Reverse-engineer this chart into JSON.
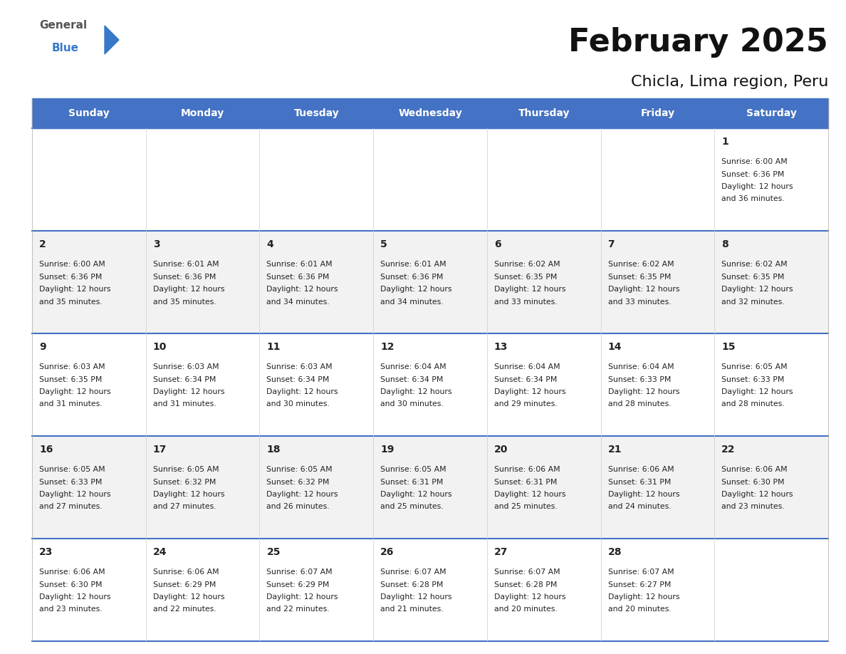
{
  "title": "February 2025",
  "subtitle": "Chicla, Lima region, Peru",
  "header_color": "#4472C4",
  "header_text_color": "#FFFFFF",
  "day_names": [
    "Sunday",
    "Monday",
    "Tuesday",
    "Wednesday",
    "Thursday",
    "Friday",
    "Saturday"
  ],
  "background_color": "#FFFFFF",
  "cell_bg_even": "#F2F2F2",
  "cell_bg_odd": "#FFFFFF",
  "divider_color": "#4472C4",
  "text_color": "#222222",
  "calendar": [
    [
      {
        "day": "",
        "sunrise": "",
        "sunset": "",
        "daylight_h": "",
        "daylight_m": ""
      },
      {
        "day": "",
        "sunrise": "",
        "sunset": "",
        "daylight_h": "",
        "daylight_m": ""
      },
      {
        "day": "",
        "sunrise": "",
        "sunset": "",
        "daylight_h": "",
        "daylight_m": ""
      },
      {
        "day": "",
        "sunrise": "",
        "sunset": "",
        "daylight_h": "",
        "daylight_m": ""
      },
      {
        "day": "",
        "sunrise": "",
        "sunset": "",
        "daylight_h": "",
        "daylight_m": ""
      },
      {
        "day": "",
        "sunrise": "",
        "sunset": "",
        "daylight_h": "",
        "daylight_m": ""
      },
      {
        "day": "1",
        "sunrise": "6:00 AM",
        "sunset": "6:36 PM",
        "daylight_h": "12 hours",
        "daylight_m": "and 36 minutes."
      }
    ],
    [
      {
        "day": "2",
        "sunrise": "6:00 AM",
        "sunset": "6:36 PM",
        "daylight_h": "12 hours",
        "daylight_m": "and 35 minutes."
      },
      {
        "day": "3",
        "sunrise": "6:01 AM",
        "sunset": "6:36 PM",
        "daylight_h": "12 hours",
        "daylight_m": "and 35 minutes."
      },
      {
        "day": "4",
        "sunrise": "6:01 AM",
        "sunset": "6:36 PM",
        "daylight_h": "12 hours",
        "daylight_m": "and 34 minutes."
      },
      {
        "day": "5",
        "sunrise": "6:01 AM",
        "sunset": "6:36 PM",
        "daylight_h": "12 hours",
        "daylight_m": "and 34 minutes."
      },
      {
        "day": "6",
        "sunrise": "6:02 AM",
        "sunset": "6:35 PM",
        "daylight_h": "12 hours",
        "daylight_m": "and 33 minutes."
      },
      {
        "day": "7",
        "sunrise": "6:02 AM",
        "sunset": "6:35 PM",
        "daylight_h": "12 hours",
        "daylight_m": "and 33 minutes."
      },
      {
        "day": "8",
        "sunrise": "6:02 AM",
        "sunset": "6:35 PM",
        "daylight_h": "12 hours",
        "daylight_m": "and 32 minutes."
      }
    ],
    [
      {
        "day": "9",
        "sunrise": "6:03 AM",
        "sunset": "6:35 PM",
        "daylight_h": "12 hours",
        "daylight_m": "and 31 minutes."
      },
      {
        "day": "10",
        "sunrise": "6:03 AM",
        "sunset": "6:34 PM",
        "daylight_h": "12 hours",
        "daylight_m": "and 31 minutes."
      },
      {
        "day": "11",
        "sunrise": "6:03 AM",
        "sunset": "6:34 PM",
        "daylight_h": "12 hours",
        "daylight_m": "and 30 minutes."
      },
      {
        "day": "12",
        "sunrise": "6:04 AM",
        "sunset": "6:34 PM",
        "daylight_h": "12 hours",
        "daylight_m": "and 30 minutes."
      },
      {
        "day": "13",
        "sunrise": "6:04 AM",
        "sunset": "6:34 PM",
        "daylight_h": "12 hours",
        "daylight_m": "and 29 minutes."
      },
      {
        "day": "14",
        "sunrise": "6:04 AM",
        "sunset": "6:33 PM",
        "daylight_h": "12 hours",
        "daylight_m": "and 28 minutes."
      },
      {
        "day": "15",
        "sunrise": "6:05 AM",
        "sunset": "6:33 PM",
        "daylight_h": "12 hours",
        "daylight_m": "and 28 minutes."
      }
    ],
    [
      {
        "day": "16",
        "sunrise": "6:05 AM",
        "sunset": "6:33 PM",
        "daylight_h": "12 hours",
        "daylight_m": "and 27 minutes."
      },
      {
        "day": "17",
        "sunrise": "6:05 AM",
        "sunset": "6:32 PM",
        "daylight_h": "12 hours",
        "daylight_m": "and 27 minutes."
      },
      {
        "day": "18",
        "sunrise": "6:05 AM",
        "sunset": "6:32 PM",
        "daylight_h": "12 hours",
        "daylight_m": "and 26 minutes."
      },
      {
        "day": "19",
        "sunrise": "6:05 AM",
        "sunset": "6:31 PM",
        "daylight_h": "12 hours",
        "daylight_m": "and 25 minutes."
      },
      {
        "day": "20",
        "sunrise": "6:06 AM",
        "sunset": "6:31 PM",
        "daylight_h": "12 hours",
        "daylight_m": "and 25 minutes."
      },
      {
        "day": "21",
        "sunrise": "6:06 AM",
        "sunset": "6:31 PM",
        "daylight_h": "12 hours",
        "daylight_m": "and 24 minutes."
      },
      {
        "day": "22",
        "sunrise": "6:06 AM",
        "sunset": "6:30 PM",
        "daylight_h": "12 hours",
        "daylight_m": "and 23 minutes."
      }
    ],
    [
      {
        "day": "23",
        "sunrise": "6:06 AM",
        "sunset": "6:30 PM",
        "daylight_h": "12 hours",
        "daylight_m": "and 23 minutes."
      },
      {
        "day": "24",
        "sunrise": "6:06 AM",
        "sunset": "6:29 PM",
        "daylight_h": "12 hours",
        "daylight_m": "and 22 minutes."
      },
      {
        "day": "25",
        "sunrise": "6:07 AM",
        "sunset": "6:29 PM",
        "daylight_h": "12 hours",
        "daylight_m": "and 22 minutes."
      },
      {
        "day": "26",
        "sunrise": "6:07 AM",
        "sunset": "6:28 PM",
        "daylight_h": "12 hours",
        "daylight_m": "and 21 minutes."
      },
      {
        "day": "27",
        "sunrise": "6:07 AM",
        "sunset": "6:28 PM",
        "daylight_h": "12 hours",
        "daylight_m": "and 20 minutes."
      },
      {
        "day": "28",
        "sunrise": "6:07 AM",
        "sunset": "6:27 PM",
        "daylight_h": "12 hours",
        "daylight_m": "and 20 minutes."
      },
      {
        "day": "",
        "sunrise": "",
        "sunset": "",
        "daylight_h": "",
        "daylight_m": ""
      }
    ]
  ]
}
